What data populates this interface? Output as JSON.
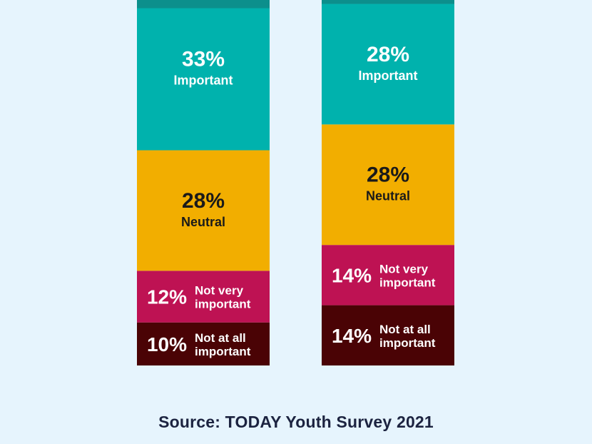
{
  "chart_data": {
    "type": "bar",
    "stacked": true,
    "categories": [
      "",
      ""
    ],
    "segments": [
      {
        "name": "Important",
        "label": "Important",
        "values": [
          33,
          28
        ],
        "color": "#00b2ad",
        "text_color": "#ffffff"
      },
      {
        "name": "Neutral",
        "label": "Neutral",
        "values": [
          28,
          28
        ],
        "color": "#f2ae00",
        "text_color": "#1a1a1a"
      },
      {
        "name": "Not very important",
        "label": "Not very important",
        "values": [
          12,
          14
        ],
        "color": "#be1253",
        "text_color": "#ffffff"
      },
      {
        "name": "Not at all important",
        "label": "Not at all important",
        "values": [
          10,
          14
        ],
        "color": "#4a0305",
        "text_color": "#ffffff"
      }
    ],
    "top_segment_color": "#0c8f8c",
    "title": "",
    "xlabel": "",
    "ylabel": "",
    "grid": false,
    "legend": "none"
  },
  "source": "Source: TODAY Youth Survey 2021"
}
